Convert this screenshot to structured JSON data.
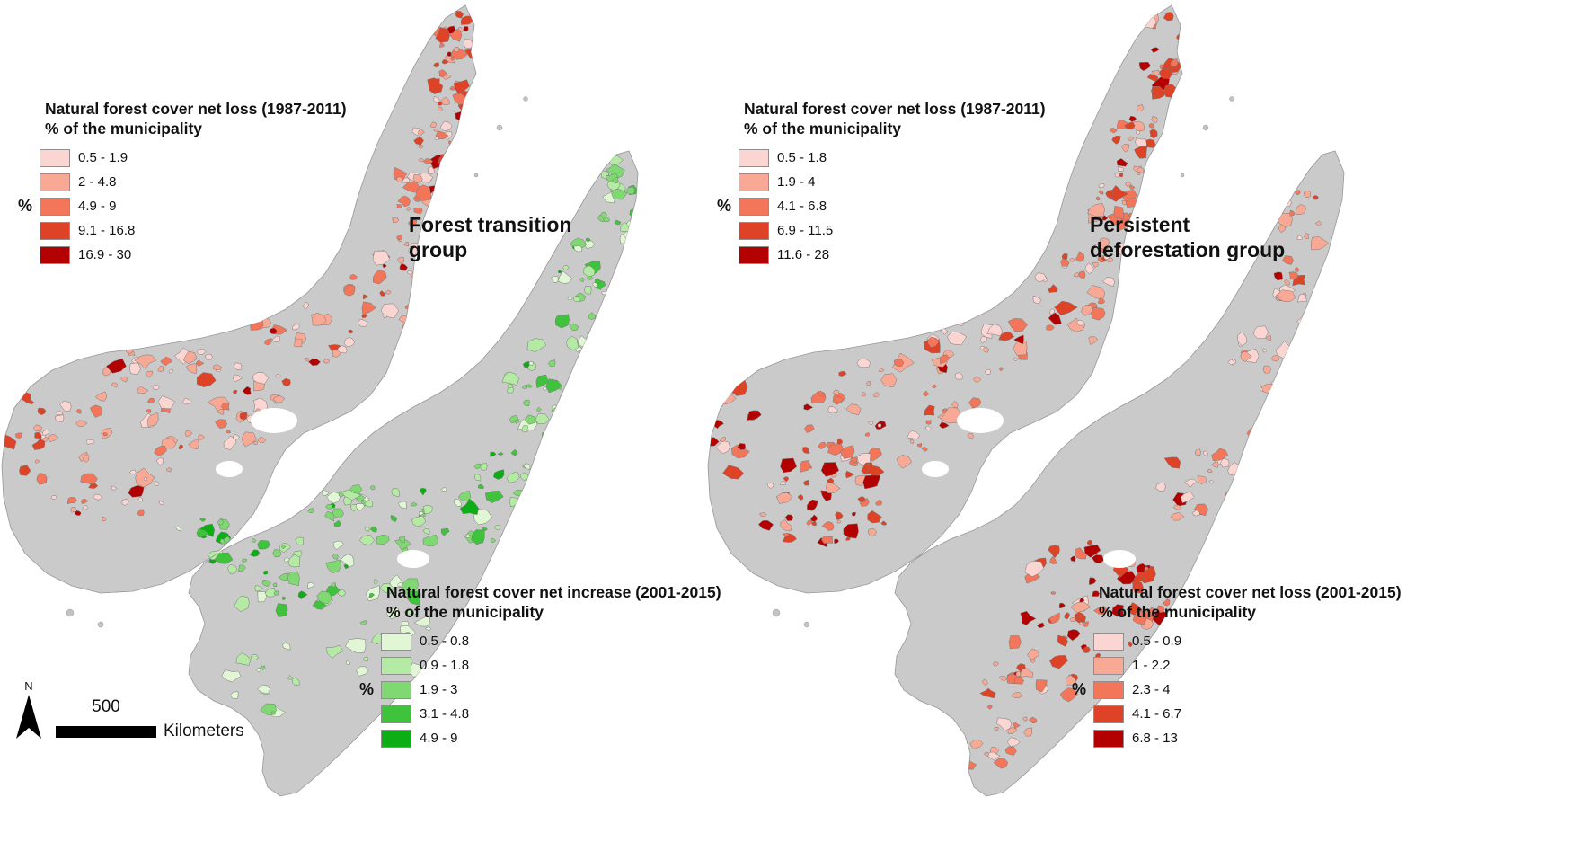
{
  "figure": {
    "background": "#ffffff",
    "land_color": "#cacaca",
    "land_outline": "#979797"
  },
  "maps": [
    {
      "id": "forest-transition-group",
      "group_label_lines": [
        "Forest transition",
        "group"
      ],
      "legends": [
        {
          "title": "Natural forest cover net loss (1987-2011)",
          "subtitle": "% of the municipality",
          "unit_label": "%",
          "classes": [
            {
              "label": "0.5 - 1.9",
              "color": "#fbd5d2"
            },
            {
              "label": "2 - 4.8",
              "color": "#f8a996"
            },
            {
              "label": "4.9 - 9",
              "color": "#f3765a"
            },
            {
              "label": "9.1 - 16.8",
              "color": "#de4327"
            },
            {
              "label": "16.9 - 30",
              "color": "#b30000"
            }
          ]
        },
        {
          "title": "Natural forest cover net increase (2001-2015)",
          "subtitle": "% of the municipality",
          "unit_label": "%",
          "classes": [
            {
              "label": "0.5 - 0.8",
              "color": "#e1f6d4"
            },
            {
              "label": "0.9 - 1.8",
              "color": "#b5eaa4"
            },
            {
              "label": "1.9 - 3",
              "color": "#7fd871"
            },
            {
              "label": "3.1 - 4.8",
              "color": "#3fc33d"
            },
            {
              "label": "4.9 - 9",
              "color": "#0dad15"
            }
          ]
        }
      ]
    },
    {
      "id": "persistent-deforestation-group",
      "group_label_lines": [
        "Persistent",
        "deforestation group"
      ],
      "legends": [
        {
          "title": "Natural forest cover net loss (1987-2011)",
          "subtitle": "% of the municipality",
          "unit_label": "%",
          "classes": [
            {
              "label": "0.5 - 1.8",
              "color": "#fbd5d2"
            },
            {
              "label": "1.9 - 4",
              "color": "#f8a996"
            },
            {
              "label": "4.1 - 6.8",
              "color": "#f3765a"
            },
            {
              "label": "6.9 - 11.5",
              "color": "#de4327"
            },
            {
              "label": "11.6 - 28",
              "color": "#b30000"
            }
          ]
        },
        {
          "title": "Natural forest cover net loss (2001-2015)",
          "subtitle": "% of the municipality",
          "unit_label": "%",
          "classes": [
            {
              "label": "0.5 - 0.9",
              "color": "#fbd5d2"
            },
            {
              "label": "1 - 2.2",
              "color": "#f8a996"
            },
            {
              "label": "2.3 - 4",
              "color": "#f3765a"
            },
            {
              "label": "4.1 - 6.7",
              "color": "#de4327"
            },
            {
              "label": "6.8 - 13",
              "color": "#b30000"
            }
          ]
        }
      ]
    }
  ],
  "scale_bar": {
    "value": "500",
    "unit": "Kilometers"
  },
  "north_arrow": {
    "label": "N"
  }
}
